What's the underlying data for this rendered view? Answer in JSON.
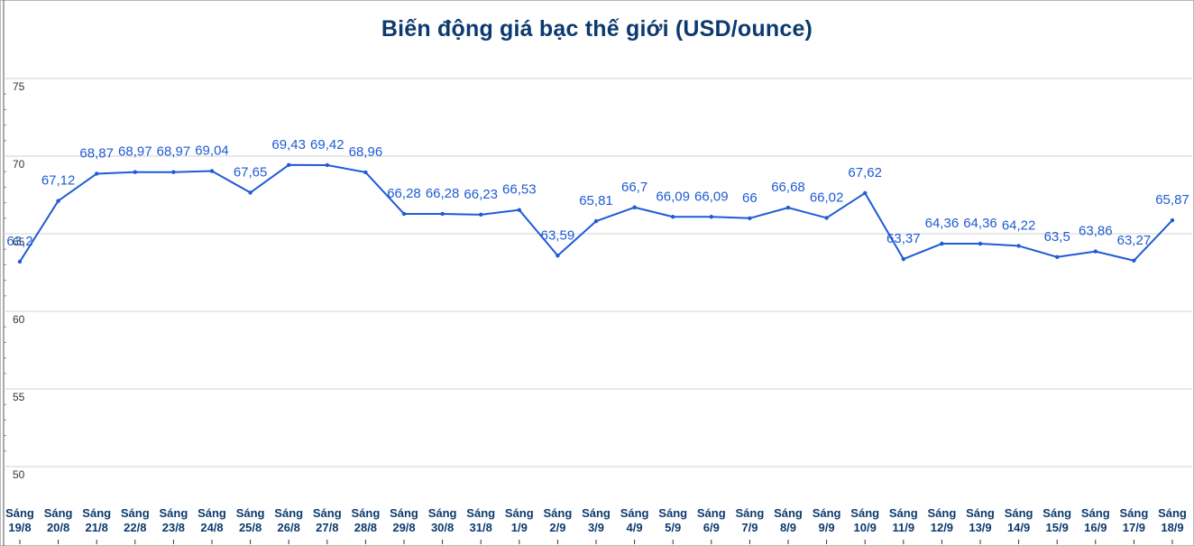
{
  "chart_data": {
    "type": "line",
    "title": "Biến động giá bạc thế giới (USD/ounce)",
    "xlabel": "",
    "ylabel": "",
    "ylim": [
      50,
      75
    ],
    "yticks": [
      "50",
      "55",
      "60",
      "65",
      "70",
      "75"
    ],
    "grid": true,
    "line_color": "#1f5bd4",
    "categories": [
      [
        "Sáng",
        "19/8"
      ],
      [
        "Sáng",
        "20/8"
      ],
      [
        "Sáng",
        "21/8"
      ],
      [
        "Sáng",
        "22/8"
      ],
      [
        "Sáng",
        "23/8"
      ],
      [
        "Sáng",
        "24/8"
      ],
      [
        "Sáng",
        "25/8"
      ],
      [
        "Sáng",
        "26/8"
      ],
      [
        "Sáng",
        "27/8"
      ],
      [
        "Sáng",
        "28/8"
      ],
      [
        "Sáng",
        "29/8"
      ],
      [
        "Sáng",
        "30/8"
      ],
      [
        "Sáng",
        "31/8"
      ],
      [
        "Sáng",
        "1/9"
      ],
      [
        "Sáng",
        "2/9"
      ],
      [
        "Sáng",
        "3/9"
      ],
      [
        "Sáng",
        "4/9"
      ],
      [
        "Sáng",
        "5/9"
      ],
      [
        "Sáng",
        "6/9"
      ],
      [
        "Sáng",
        "7/9"
      ],
      [
        "Sáng",
        "8/9"
      ],
      [
        "Sáng",
        "9/9"
      ],
      [
        "Sáng",
        "10/9"
      ],
      [
        "Sáng",
        "11/9"
      ],
      [
        "Sáng",
        "12/9"
      ],
      [
        "Sáng",
        "13/9"
      ],
      [
        "Sáng",
        "14/9"
      ],
      [
        "Sáng",
        "15/9"
      ],
      [
        "Sáng",
        "16/9"
      ],
      [
        "Sáng",
        "17/9"
      ],
      [
        "Sáng",
        "18/9"
      ]
    ],
    "values": [
      63.2,
      67.12,
      68.87,
      68.97,
      68.97,
      69.04,
      67.65,
      69.43,
      69.42,
      68.96,
      66.28,
      66.28,
      66.23,
      66.53,
      63.59,
      65.81,
      66.7,
      66.09,
      66.09,
      66,
      66.68,
      66.02,
      67.62,
      63.37,
      64.36,
      64.36,
      64.22,
      63.5,
      63.86,
      63.27,
      65.87
    ],
    "labels": [
      "63,2",
      "67,12",
      "68,87",
      "68,97",
      "68,97",
      "69,04",
      "67,65",
      "69,43",
      "69,42",
      "68,96",
      "66,28",
      "66,28",
      "66,23",
      "66,53",
      "63,59",
      "65,81",
      "66,7",
      "66,09",
      "66,09",
      "66",
      "66,68",
      "66,02",
      "67,62",
      "63,37",
      "64,36",
      "64,36",
      "64,22",
      "63,5",
      "63,86",
      "63,27",
      "65,87"
    ]
  }
}
